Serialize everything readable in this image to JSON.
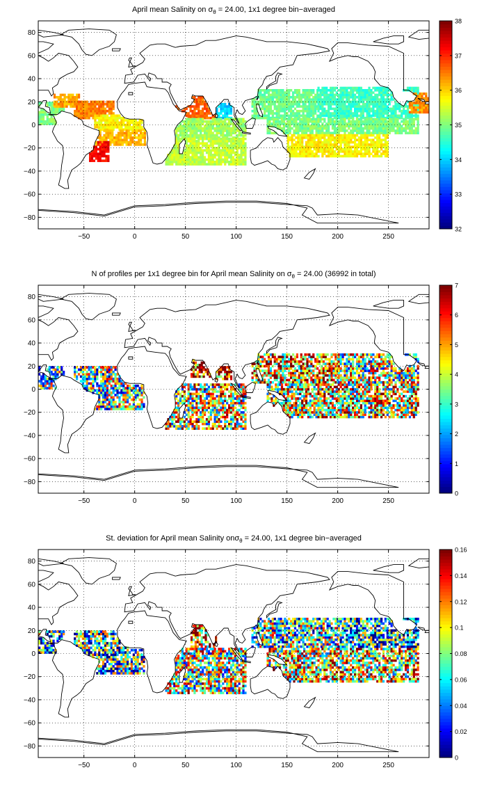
{
  "chart_data": [
    {
      "type": "heatmap",
      "title_main": "April mean Salinity on ",
      "title_sym": "σ",
      "title_sub": "θ",
      "title_rest": " = 24.00, 1x1 degree bin−averaged",
      "x_ticks": [
        "−50",
        "0",
        "50",
        "100",
        "150",
        "200",
        "250"
      ],
      "y_ticks": [
        "80",
        "60",
        "40",
        "20",
        "0",
        "−20",
        "−40",
        "−60",
        "−80"
      ],
      "xlim": [
        -95,
        290
      ],
      "ylim": [
        -90,
        90
      ],
      "grid": true,
      "colorbar": {
        "min": 32,
        "max": 38,
        "ticks": [
          "32",
          "33",
          "34",
          "35",
          "36",
          "37",
          "38"
        ]
      },
      "fields": [
        {
          "x": [
            -95,
            -70
          ],
          "y": [
            0,
            20
          ],
          "value": 35.0
        },
        {
          "x": [
            -80,
            -55
          ],
          "y": [
            15,
            27
          ],
          "value": 36.3
        },
        {
          "x": [
            -60,
            -20
          ],
          "y": [
            5,
            20
          ],
          "value": 36.5
        },
        {
          "x": [
            -40,
            10
          ],
          "y": [
            -5,
            8
          ],
          "value": 35.8
        },
        {
          "x": [
            -55,
            10
          ],
          "y": [
            -18,
            -5
          ],
          "value": 36.2
        },
        {
          "x": [
            -45,
            -25
          ],
          "y": [
            -32,
            -15
          ],
          "value": 37.2
        },
        {
          "x": [
            40,
            80
          ],
          "y": [
            5,
            25
          ],
          "value": 36.7
        },
        {
          "x": [
            80,
            95
          ],
          "y": [
            5,
            18
          ],
          "value": 34.0
        },
        {
          "x": [
            40,
            110
          ],
          "y": [
            -12,
            5
          ],
          "value": 35.2
        },
        {
          "x": [
            30,
            110
          ],
          "y": [
            -35,
            -12
          ],
          "value": 35.4
        },
        {
          "x": [
            115,
            180
          ],
          "y": [
            5,
            30
          ],
          "value": 34.9
        },
        {
          "x": [
            180,
            280
          ],
          "y": [
            5,
            32
          ],
          "value": 34.6
        },
        {
          "x": [
            130,
            280
          ],
          "y": [
            -8,
            5
          ],
          "value": 35.0
        },
        {
          "x": [
            150,
            250
          ],
          "y": [
            -28,
            -8
          ],
          "value": 35.8
        },
        {
          "x": [
            270,
            290
          ],
          "y": [
            10,
            28
          ],
          "value": 36.4
        }
      ]
    },
    {
      "type": "heatmap",
      "title_main": "N of profiles per 1x1 degree bin for April mean Salinity on ",
      "title_sym": "σ",
      "title_sub": "θ",
      "title_rest": " = 24.00 (36992 in total)",
      "x_ticks": [
        "−50",
        "0",
        "50",
        "100",
        "150",
        "200",
        "250"
      ],
      "y_ticks": [
        "80",
        "60",
        "40",
        "20",
        "0",
        "−20",
        "−40",
        "−60",
        "−80"
      ],
      "xlim": [
        -95,
        290
      ],
      "ylim": [
        -90,
        90
      ],
      "grid": true,
      "colorbar": {
        "min": 0,
        "max": 7,
        "ticks": [
          "0",
          "1",
          "2",
          "3",
          "4",
          "5",
          "6",
          "7"
        ]
      },
      "fields": [
        {
          "x": [
            -95,
            -70
          ],
          "y": [
            0,
            20
          ],
          "value": 3.0
        },
        {
          "x": [
            -60,
            10
          ],
          "y": [
            -18,
            20
          ],
          "value": 3.2
        },
        {
          "x": [
            55,
            75
          ],
          "y": [
            10,
            25
          ],
          "value": 6.5
        },
        {
          "x": [
            80,
            95
          ],
          "y": [
            8,
            20
          ],
          "value": 6.2
        },
        {
          "x": [
            30,
            110
          ],
          "y": [
            -35,
            5
          ],
          "value": 4.2
        },
        {
          "x": [
            115,
            200
          ],
          "y": [
            5,
            30
          ],
          "value": 5.0
        },
        {
          "x": [
            130,
            280
          ],
          "y": [
            -25,
            5
          ],
          "value": 4.5
        },
        {
          "x": [
            200,
            280
          ],
          "y": [
            5,
            30
          ],
          "value": 3.8
        }
      ]
    },
    {
      "type": "heatmap",
      "title_main": "St. deviation for April mean Salinity on",
      "title_sym": "σ",
      "title_sub": "θ",
      "title_rest": " = 24.00, 1x1 degree bin−averaged",
      "x_ticks": [
        "−50",
        "0",
        "50",
        "100",
        "150",
        "200",
        "250"
      ],
      "y_ticks": [
        "80",
        "60",
        "40",
        "20",
        "0",
        "−20",
        "−40",
        "−60",
        "−80"
      ],
      "xlim": [
        -95,
        290
      ],
      "ylim": [
        -90,
        90
      ],
      "grid": true,
      "colorbar": {
        "min": 0,
        "max": 0.16,
        "ticks": [
          "0",
          "0.02",
          "0.04",
          "0.06",
          "0.08",
          "0.1",
          "0.12",
          "0.14",
          "0.16"
        ]
      },
      "fields": [
        {
          "x": [
            -95,
            -70
          ],
          "y": [
            0,
            20
          ],
          "value": 0.05
        },
        {
          "x": [
            -60,
            10
          ],
          "y": [
            -18,
            20
          ],
          "value": 0.06
        },
        {
          "x": [
            55,
            80
          ],
          "y": [
            5,
            25
          ],
          "value": 0.12
        },
        {
          "x": [
            30,
            110
          ],
          "y": [
            -35,
            5
          ],
          "value": 0.09
        },
        {
          "x": [
            115,
            200
          ],
          "y": [
            5,
            30
          ],
          "value": 0.07
        },
        {
          "x": [
            130,
            280
          ],
          "y": [
            -25,
            5
          ],
          "value": 0.1
        },
        {
          "x": [
            200,
            280
          ],
          "y": [
            5,
            30
          ],
          "value": 0.05
        }
      ]
    }
  ],
  "colors": {
    "background": "#ffffff",
    "axes": "#000000",
    "coastline": "#000000",
    "grid": "#000000",
    "colormap": "jet"
  }
}
